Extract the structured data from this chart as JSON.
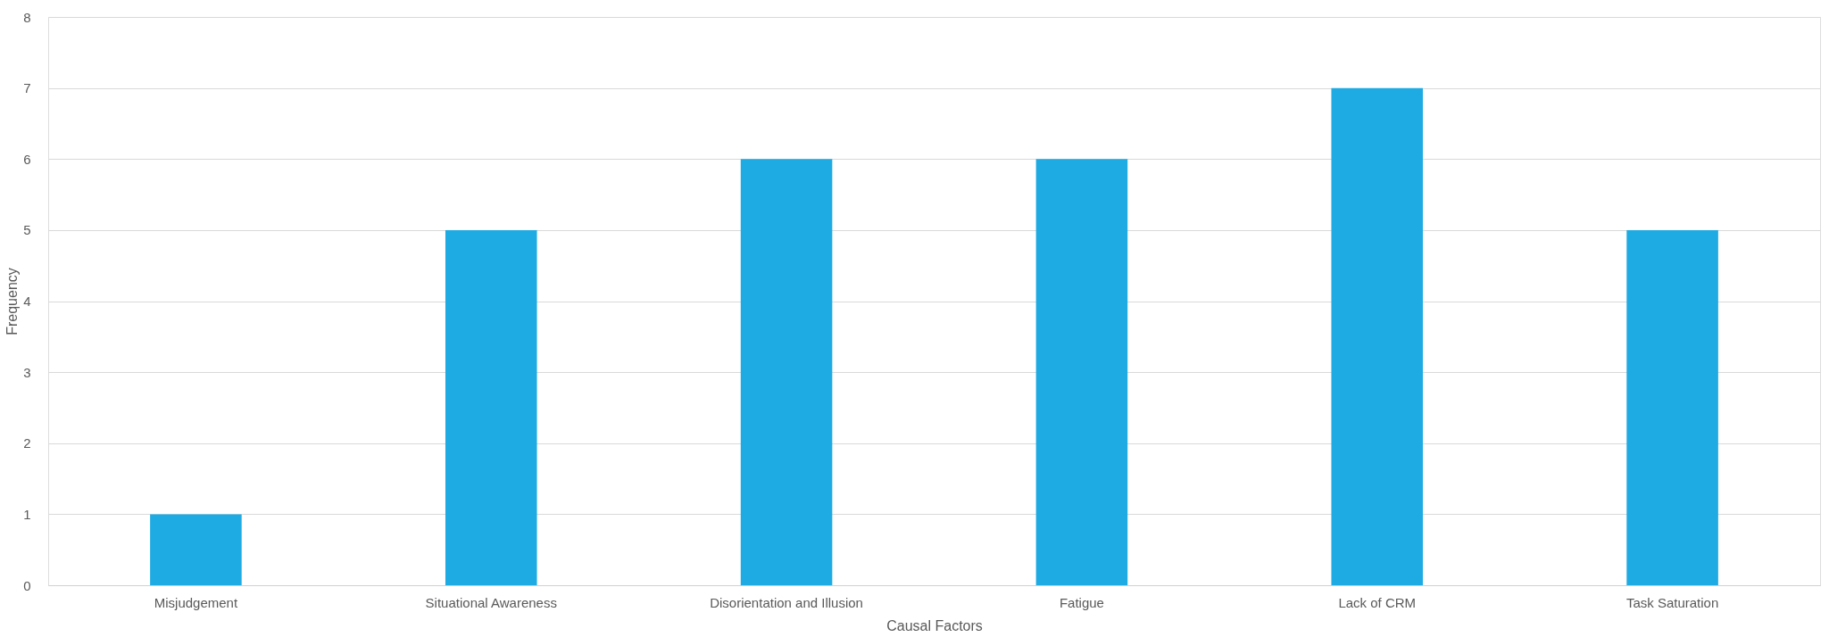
{
  "chart_data": {
    "type": "bar",
    "xlabel": "Causal Factors",
    "ylabel": "Frequency",
    "categories": [
      "Misjudgement",
      "Situational Awareness",
      "Disorientation and Illusion",
      "Fatigue",
      "Lack of CRM",
      "Task Saturation"
    ],
    "values": [
      1,
      5,
      6,
      6,
      7,
      5
    ],
    "color": "#1eabe3",
    "ylim": [
      0,
      8
    ],
    "yticks": [
      0,
      1,
      2,
      3,
      4,
      5,
      6,
      7,
      8
    ],
    "grid": "y"
  }
}
